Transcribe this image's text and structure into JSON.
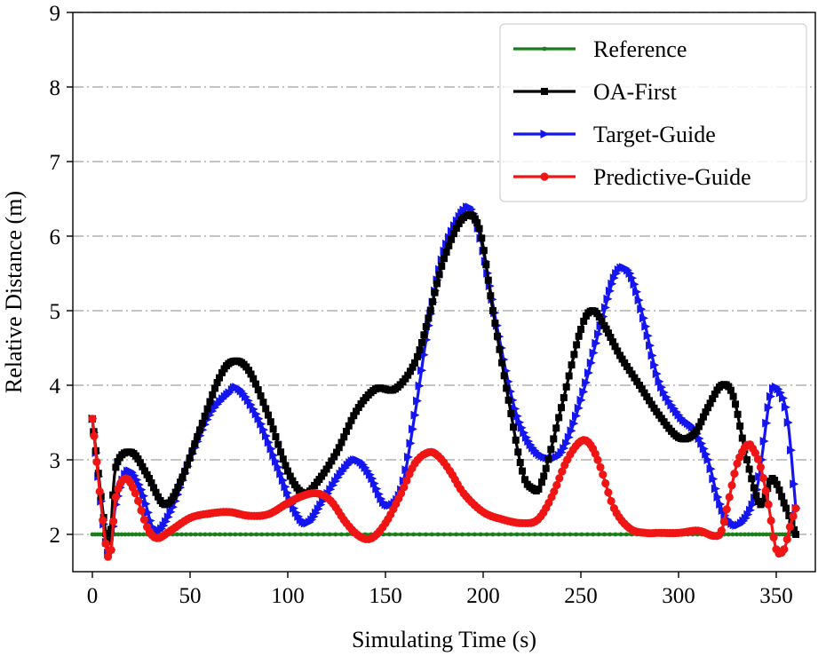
{
  "chart_data": {
    "type": "line",
    "title": "",
    "xlabel": "Simulating Time (s)",
    "ylabel": "Relative Distance (m)",
    "xlim": [
      -10,
      370
    ],
    "ylim": [
      1.5,
      9
    ],
    "xticks": [
      0,
      50,
      100,
      150,
      200,
      250,
      300,
      350
    ],
    "yticks": [
      2,
      3,
      4,
      5,
      6,
      7,
      8,
      9
    ],
    "grid": "horizontal dash-dot",
    "legend_position": "top-right",
    "series": [
      {
        "name": "Reference",
        "color": "#1a7f1a",
        "marker": "dot",
        "x": [
          0,
          360
        ],
        "y": [
          2.0,
          2.0
        ]
      },
      {
        "name": "OA-First",
        "color": "#000000",
        "marker": "square",
        "x": [
          0,
          8,
          12,
          20,
          28,
          37,
          45,
          55,
          65,
          72,
          80,
          90,
          100,
          108,
          115,
          125,
          135,
          145,
          155,
          165,
          172,
          180,
          190,
          198,
          205,
          213,
          220,
          225,
          230,
          240,
          250,
          256,
          262,
          270,
          280,
          290,
          300,
          308,
          315,
          322,
          328,
          335,
          342,
          348,
          355,
          360
        ],
        "y": [
          3.55,
          1.9,
          2.9,
          3.1,
          2.8,
          2.4,
          2.7,
          3.4,
          4.1,
          4.32,
          4.2,
          3.6,
          2.85,
          2.55,
          2.7,
          3.1,
          3.65,
          3.95,
          3.95,
          4.3,
          4.9,
          5.7,
          6.25,
          6.1,
          5.0,
          3.8,
          2.85,
          2.62,
          2.7,
          3.7,
          4.75,
          5.0,
          4.8,
          4.4,
          4.0,
          3.6,
          3.3,
          3.35,
          3.7,
          4.0,
          3.85,
          3.0,
          2.4,
          2.75,
          2.35,
          2.0
        ]
      },
      {
        "name": "Target-Guide",
        "color": "#1515f0",
        "marker": "triangle-right",
        "x": [
          0,
          8,
          12,
          18,
          25,
          32,
          40,
          50,
          60,
          70,
          75,
          85,
          95,
          103,
          110,
          118,
          128,
          135,
          142,
          150,
          158,
          165,
          172,
          180,
          190,
          195,
          200,
          207,
          215,
          222,
          230,
          240,
          250,
          260,
          268,
          275,
          282,
          290,
          300,
          308,
          315,
          320,
          325,
          332,
          340,
          347,
          352,
          356,
          360
        ],
        "y": [
          3.55,
          1.75,
          2.4,
          2.85,
          2.6,
          2.05,
          2.3,
          3.0,
          3.6,
          3.9,
          3.95,
          3.55,
          2.9,
          2.35,
          2.15,
          2.45,
          2.85,
          3.0,
          2.8,
          2.4,
          2.6,
          3.6,
          4.8,
          5.8,
          6.35,
          6.3,
          5.8,
          4.8,
          3.8,
          3.3,
          3.05,
          3.1,
          3.8,
          4.8,
          5.5,
          5.5,
          4.9,
          4.05,
          3.6,
          3.4,
          3.0,
          2.5,
          2.2,
          2.15,
          2.6,
          3.85,
          3.9,
          3.5,
          2.35
        ]
      },
      {
        "name": "Predictive-Guide",
        "color": "#f01515",
        "marker": "circle",
        "x": [
          0,
          8,
          12,
          17,
          22,
          28,
          33,
          40,
          50,
          60,
          70,
          80,
          90,
          100,
          108,
          115,
          122,
          130,
          137,
          143,
          150,
          158,
          165,
          172,
          177,
          183,
          190,
          200,
          210,
          220,
          228,
          235,
          243,
          250,
          255,
          260,
          267,
          275,
          283,
          290,
          300,
          310,
          318,
          322,
          326,
          330,
          335,
          338,
          342,
          346,
          350,
          354,
          357,
          360
        ],
        "y": [
          3.55,
          1.7,
          2.5,
          2.75,
          2.55,
          2.1,
          1.95,
          2.05,
          2.22,
          2.28,
          2.3,
          2.25,
          2.27,
          2.42,
          2.52,
          2.55,
          2.45,
          2.15,
          1.97,
          1.95,
          2.15,
          2.55,
          2.95,
          3.1,
          3.05,
          2.85,
          2.55,
          2.3,
          2.2,
          2.15,
          2.2,
          2.5,
          3.0,
          3.25,
          3.2,
          2.9,
          2.35,
          2.08,
          2.02,
          2.02,
          2.02,
          2.05,
          1.98,
          2.05,
          2.5,
          2.95,
          3.2,
          3.15,
          2.9,
          2.4,
          1.8,
          1.8,
          2.1,
          2.35
        ]
      }
    ]
  }
}
